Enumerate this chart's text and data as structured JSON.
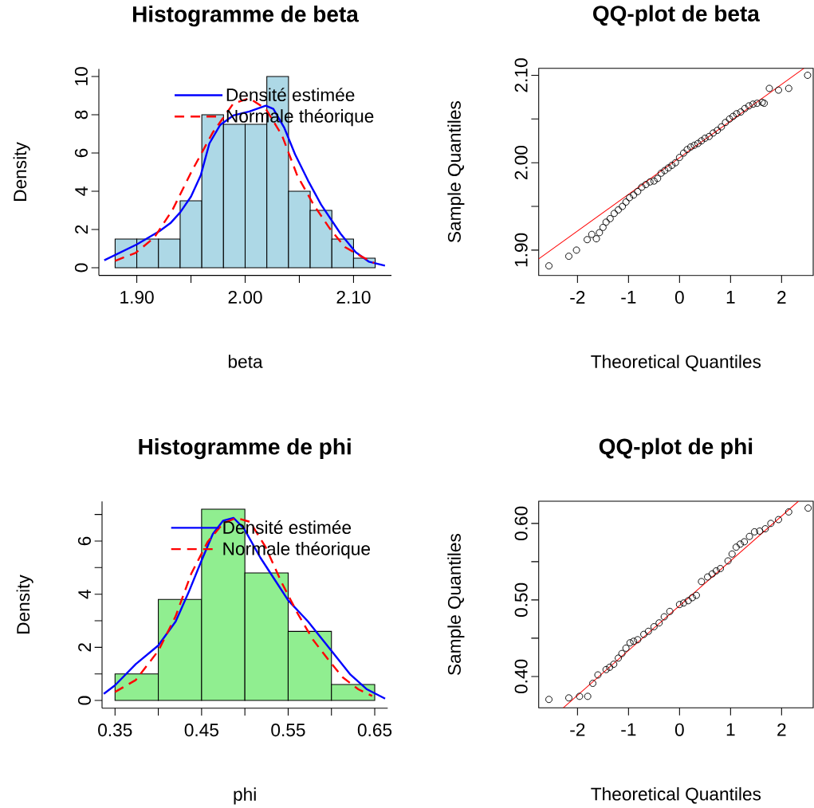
{
  "chart_data": [
    {
      "type": "histogram",
      "title": "Histogramme de beta",
      "xlabel": "beta",
      "ylabel": "Density",
      "color": "#add8e6",
      "bins": [
        1.88,
        1.9,
        1.92,
        1.94,
        1.96,
        1.98,
        2.0,
        2.02,
        2.04,
        2.06,
        2.08,
        2.1,
        2.12
      ],
      "values": [
        1.5,
        1.5,
        1.5,
        3.5,
        8,
        7.5,
        7.5,
        10,
        4,
        3,
        1.5,
        0.5
      ],
      "xlim": [
        1.865,
        2.135
      ],
      "ylim": [
        -0.4,
        10.4
      ],
      "xticks": [
        {
          "value": 1.9,
          "label": "1.90"
        },
        {
          "value": 1.95,
          "label": null
        },
        {
          "value": 2.0,
          "label": "2.00"
        },
        {
          "value": 2.05,
          "label": null
        },
        {
          "value": 2.1,
          "label": "2.10"
        }
      ],
      "yticks": [
        0,
        2,
        4,
        6,
        8,
        10
      ],
      "legend": "top right",
      "series": [
        {
          "name": "Densité estimée",
          "type": "line",
          "color": "#0000ff",
          "line_style": "solid",
          "x": [
            1.87,
            1.9,
            1.921,
            1.931,
            1.94,
            1.95,
            1.959,
            1.967,
            1.977,
            1.989,
            2.004,
            2.019,
            2.026,
            2.036,
            2.046,
            2.058,
            2.07,
            2.088,
            2.102,
            2.114,
            2.129
          ],
          "values": [
            0.39,
            1.22,
            1.92,
            2.33,
            2.89,
            3.72,
            4.83,
            6.5,
            7.47,
            7.96,
            8.17,
            8.47,
            8.31,
            7.33,
            5.94,
            4.56,
            3.31,
            1.78,
            0.81,
            0.32,
            0.11
          ]
        },
        {
          "name": "Normale théorique",
          "type": "line",
          "color": "#ff0000",
          "line_style": "dashed",
          "x": [
            1.88,
            1.899,
            1.916,
            1.933,
            1.95,
            1.97,
            1.989,
            2.004,
            2.019,
            2.034,
            2.048,
            2.063,
            2.078,
            2.092,
            2.107,
            2.119
          ],
          "values": [
            0.36,
            0.78,
            1.57,
            3.03,
            4.97,
            7.06,
            8.58,
            8.86,
            8.31,
            6.92,
            4.83,
            3.31,
            2.06,
            1.08,
            0.6,
            0.25
          ]
        }
      ]
    },
    {
      "type": "scatter",
      "title": "QQ-plot de beta",
      "xlabel": "Theoretical Quantiles",
      "ylabel": "Sample Quantiles",
      "xlim": [
        -2.76,
        2.62
      ],
      "ylim": [
        1.871,
        2.108
      ],
      "xticks": [
        -2,
        -1,
        0,
        1,
        2
      ],
      "yticks": [
        {
          "value": 1.9,
          "label": "1.90"
        },
        {
          "value": 1.95,
          "label": null
        },
        {
          "value": 2.0,
          "label": "2.00"
        },
        {
          "value": 2.05,
          "label": null
        },
        {
          "value": 2.1,
          "label": "2.10"
        }
      ],
      "series": [
        {
          "type": "scatter",
          "marker": "circle",
          "color": "#000000",
          "x": [
            -2.56,
            -2.17,
            -2.02,
            -1.81,
            -1.72,
            -1.63,
            -1.57,
            -1.5,
            -1.44,
            -1.36,
            -1.28,
            -1.2,
            -1.12,
            -1.05,
            -0.98,
            -0.9,
            -0.82,
            -0.74,
            -0.66,
            -0.58,
            -0.5,
            -0.43,
            -0.36,
            -0.29,
            -0.22,
            -0.15,
            -0.08,
            0.0,
            0.08,
            0.15,
            0.22,
            0.29,
            0.36,
            0.43,
            0.5,
            0.58,
            0.66,
            0.74,
            0.82,
            0.9,
            0.98,
            1.05,
            1.12,
            1.2,
            1.28,
            1.36,
            1.44,
            1.52,
            1.62,
            1.66,
            1.76,
            1.94,
            2.14,
            2.51
          ],
          "values": [
            1.882,
            1.893,
            1.9,
            1.912,
            1.918,
            1.913,
            1.92,
            1.926,
            1.932,
            1.936,
            1.942,
            1.946,
            1.95,
            1.955,
            1.96,
            1.963,
            1.967,
            1.972,
            1.975,
            1.978,
            1.979,
            1.982,
            1.988,
            1.991,
            1.994,
            1.997,
            2.0,
            2.006,
            2.011,
            2.015,
            2.018,
            2.02,
            2.022,
            2.025,
            2.028,
            2.03,
            2.034,
            2.037,
            2.041,
            2.046,
            2.05,
            2.053,
            2.056,
            2.058,
            2.062,
            2.065,
            2.067,
            2.068,
            2.069,
            2.068,
            2.085,
            2.083,
            2.085,
            2.1
          ]
        },
        {
          "type": "line",
          "color": "#ff0000",
          "line_style": "solid",
          "x": [
            -2.76,
            2.44
          ],
          "values": [
            1.89,
            2.108
          ]
        }
      ]
    },
    {
      "type": "histogram",
      "title": "Histogramme de phi",
      "xlabel": "phi",
      "ylabel": "Density",
      "color": "#90ee90",
      "bins": [
        0.35,
        0.4,
        0.45,
        0.5,
        0.55,
        0.6,
        0.65
      ],
      "values": [
        1.0,
        3.8,
        7.2,
        4.8,
        2.6,
        0.6
      ],
      "xlim": [
        0.335,
        0.665
      ],
      "ylim": [
        -0.29,
        7.49
      ],
      "xticks": [
        {
          "value": 0.35,
          "label": "0.35"
        },
        {
          "value": 0.4,
          "label": null
        },
        {
          "value": 0.45,
          "label": "0.45"
        },
        {
          "value": 0.5,
          "label": null
        },
        {
          "value": 0.55,
          "label": "0.55"
        },
        {
          "value": 0.6,
          "label": null
        },
        {
          "value": 0.65,
          "label": "0.65"
        }
      ],
      "yticks": [
        0,
        {
          "value": 1,
          "label": null
        },
        2,
        {
          "value": 3,
          "label": null
        },
        4,
        {
          "value": 5,
          "label": null
        },
        6,
        {
          "value": 7,
          "label": null
        }
      ],
      "legend": "top right",
      "series": [
        {
          "name": "Densité estimée",
          "type": "line",
          "color": "#0000ff",
          "line_style": "solid",
          "x": [
            0.337,
            0.35,
            0.374,
            0.4,
            0.42,
            0.435,
            0.45,
            0.463,
            0.475,
            0.487,
            0.499,
            0.518,
            0.536,
            0.55,
            0.573,
            0.6,
            0.622,
            0.641,
            0.662
          ],
          "values": [
            0.25,
            0.57,
            1.37,
            2.07,
            2.97,
            4.07,
            5.27,
            6.27,
            6.77,
            6.87,
            6.47,
            5.37,
            4.47,
            3.77,
            2.97,
            1.87,
            0.97,
            0.42,
            0.07
          ]
        },
        {
          "name": "Normale théorique",
          "type": "line",
          "color": "#ff0000",
          "line_style": "dashed",
          "x": [
            0.35,
            0.374,
            0.4,
            0.42,
            0.438,
            0.457,
            0.475,
            0.49,
            0.506,
            0.524,
            0.542,
            0.561,
            0.579,
            0.598,
            0.613,
            0.631,
            0.647
          ],
          "values": [
            0.32,
            0.77,
            1.87,
            3.17,
            4.77,
            5.97,
            6.67,
            6.87,
            6.72,
            5.77,
            4.47,
            3.27,
            2.27,
            1.47,
            0.87,
            0.42,
            0.17
          ]
        }
      ]
    },
    {
      "type": "scatter",
      "title": "QQ-plot de phi",
      "xlabel": "Theoretical Quantiles",
      "ylabel": "Sample Quantiles",
      "xlim": [
        -2.76,
        2.62
      ],
      "ylim": [
        0.359,
        0.629
      ],
      "xticks": [
        -2,
        -1,
        0,
        1,
        2
      ],
      "yticks": [
        {
          "value": 0.4,
          "label": "0.40"
        },
        {
          "value": 0.45,
          "label": null
        },
        {
          "value": 0.5,
          "label": "0.50"
        },
        {
          "value": 0.55,
          "label": null
        },
        {
          "value": 0.6,
          "label": "0.60"
        }
      ],
      "series": [
        {
          "type": "scatter",
          "marker": "circle",
          "color": "#000000",
          "x": [
            -2.56,
            -2.17,
            -1.96,
            -1.8,
            -1.7,
            -1.6,
            -1.44,
            -1.37,
            -1.29,
            -1.2,
            -1.13,
            -1.05,
            -0.97,
            -0.9,
            -0.82,
            -0.7,
            -0.61,
            -0.5,
            -0.4,
            -0.3,
            -0.19,
            0.0,
            0.08,
            0.17,
            0.25,
            0.33,
            0.43,
            0.55,
            0.64,
            0.72,
            0.8,
            0.95,
            1.03,
            1.11,
            1.19,
            1.27,
            1.37,
            1.47,
            1.57,
            1.68,
            1.79,
            1.94,
            2.14,
            2.52
          ],
          "values": [
            0.37,
            0.372,
            0.374,
            0.374,
            0.391,
            0.402,
            0.409,
            0.412,
            0.416,
            0.424,
            0.43,
            0.437,
            0.444,
            0.446,
            0.448,
            0.455,
            0.459,
            0.465,
            0.47,
            0.478,
            0.485,
            0.494,
            0.496,
            0.499,
            0.503,
            0.506,
            0.524,
            0.53,
            0.534,
            0.538,
            0.541,
            0.551,
            0.56,
            0.569,
            0.573,
            0.576,
            0.583,
            0.589,
            0.59,
            0.593,
            0.6,
            0.605,
            0.615,
            0.62
          ]
        },
        {
          "type": "line",
          "color": "#ff0000",
          "line_style": "solid",
          "x": [
            -2.28,
            2.33
          ],
          "values": [
            0.359,
            0.629
          ]
        }
      ]
    }
  ]
}
